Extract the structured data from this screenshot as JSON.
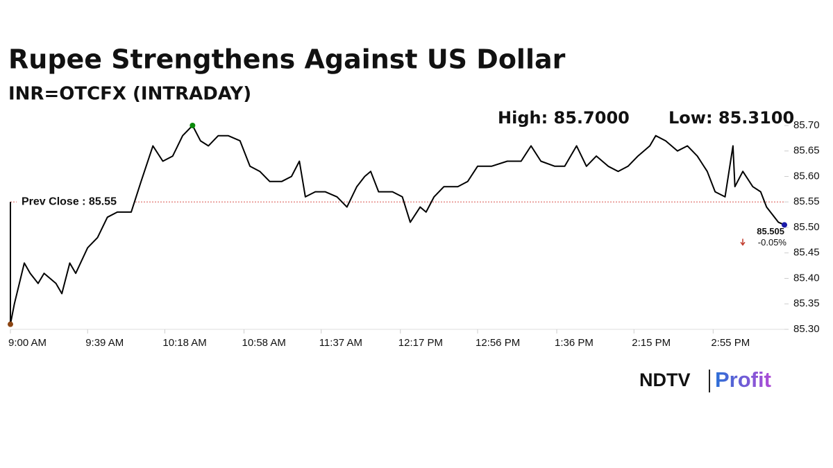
{
  "chart_data": {
    "type": "line",
    "title": "Rupee Strengthens Against US Dollar",
    "subtitle": "INR=OTCFX (INTRADAY)",
    "high_label": "High: 85.7000",
    "low_label": "Low: 85.3100",
    "prev_close": 85.55,
    "prev_close_label": "Prev Close : 85.55",
    "prev_close_color": "#d9534f",
    "last_label": "85.505",
    "change_label": "-0.05%",
    "change_color": "#c0392b",
    "logo_brand": "NDTV",
    "logo_product": "Profit",
    "x": [
      "9:00 AM",
      "9:00 AM",
      "9:02 AM",
      "9:07 AM",
      "9:10 AM",
      "9:14 AM",
      "9:17 AM",
      "9:23 AM",
      "9:26 AM",
      "9:30 AM",
      "9:33 AM",
      "9:39 AM",
      "9:44 AM",
      "9:49 AM",
      "9:54 AM",
      "10:01 AM",
      "10:06 AM",
      "10:12 AM",
      "10:17 AM",
      "10:22 AM",
      "10:27 AM",
      "10:32 AM",
      "10:36 AM",
      "10:40 AM",
      "10:45 AM",
      "10:50 AM",
      "10:56 AM",
      "11:01 AM",
      "11:06 AM",
      "11:11 AM",
      "11:17 AM",
      "11:22 AM",
      "11:26 AM",
      "11:29 AM",
      "11:34 AM",
      "11:39 AM",
      "11:45 AM",
      "11:50 AM",
      "11:55 AM",
      "11:59 AM",
      "12:02 PM",
      "12:06 PM",
      "12:13 PM",
      "12:18 PM",
      "12:22 PM",
      "12:27 PM",
      "12:30 PM",
      "12:34 PM",
      "12:39 PM",
      "12:46 PM",
      "12:51 PM",
      "12:56 PM",
      "1:03 PM",
      "1:11 PM",
      "1:18 PM",
      "1:23 PM",
      "1:28 PM",
      "1:35 PM",
      "1:40 PM",
      "1:46 PM",
      "1:51 PM",
      "1:56 PM",
      "2:02 PM",
      "2:07 PM",
      "2:12 PM",
      "2:17 PM",
      "2:23 PM",
      "2:26 PM",
      "2:31 PM",
      "2:37 PM",
      "2:42 PM",
      "2:47 PM",
      "2:52 PM",
      "2:56 PM",
      "3:01 PM",
      "3:05 PM",
      "3:06 PM",
      "3:10 PM",
      "3:15 PM",
      "3:19 PM",
      "3:22 PM",
      "3:28 PM",
      "3:31 PM"
    ],
    "series": [
      {
        "color": "#000000",
        "values": [
          85.55,
          85.31,
          85.35,
          85.43,
          85.41,
          85.39,
          85.41,
          85.39,
          85.37,
          85.43,
          85.41,
          85.46,
          85.48,
          85.52,
          85.53,
          85.53,
          85.59,
          85.66,
          85.63,
          85.64,
          85.68,
          85.7,
          85.67,
          85.66,
          85.68,
          85.68,
          85.67,
          85.62,
          85.61,
          85.59,
          85.59,
          85.6,
          85.63,
          85.56,
          85.57,
          85.57,
          85.56,
          85.54,
          85.58,
          85.6,
          85.61,
          85.57,
          85.57,
          85.56,
          85.51,
          85.54,
          85.53,
          85.56,
          85.58,
          85.58,
          85.59,
          85.62,
          85.62,
          85.63,
          85.63,
          85.66,
          85.63,
          85.62,
          85.62,
          85.66,
          85.62,
          85.64,
          85.62,
          85.61,
          85.62,
          85.64,
          85.66,
          85.68,
          85.67,
          85.65,
          85.66,
          85.64,
          85.61,
          85.57,
          85.56,
          85.66,
          85.58,
          85.61,
          85.58,
          85.57,
          85.54,
          85.51,
          85.505
        ]
      }
    ],
    "markers": [
      {
        "index": 1,
        "color": "#8b4513"
      },
      {
        "index": 21,
        "color": "#0a8a0a"
      },
      {
        "index": 82,
        "color": "#1a1aa8"
      }
    ],
    "xticks": [
      "9:00 AM",
      "9:39 AM",
      "10:18 AM",
      "10:58 AM",
      "11:37 AM",
      "12:17 PM",
      "12:56 PM",
      "1:36 PM",
      "2:15 PM",
      "2:55 PM"
    ],
    "ylim": [
      85.3,
      85.7
    ],
    "yticks": [
      {
        "value": 85.3,
        "label": "85.30"
      },
      85.35,
      {
        "value": 85.4,
        "label": "85.40"
      },
      85.45,
      {
        "value": 85.5,
        "label": "85.50"
      },
      85.55,
      {
        "value": 85.6,
        "label": "85.60"
      },
      85.65,
      {
        "value": 85.7,
        "label": "85.70"
      }
    ]
  }
}
